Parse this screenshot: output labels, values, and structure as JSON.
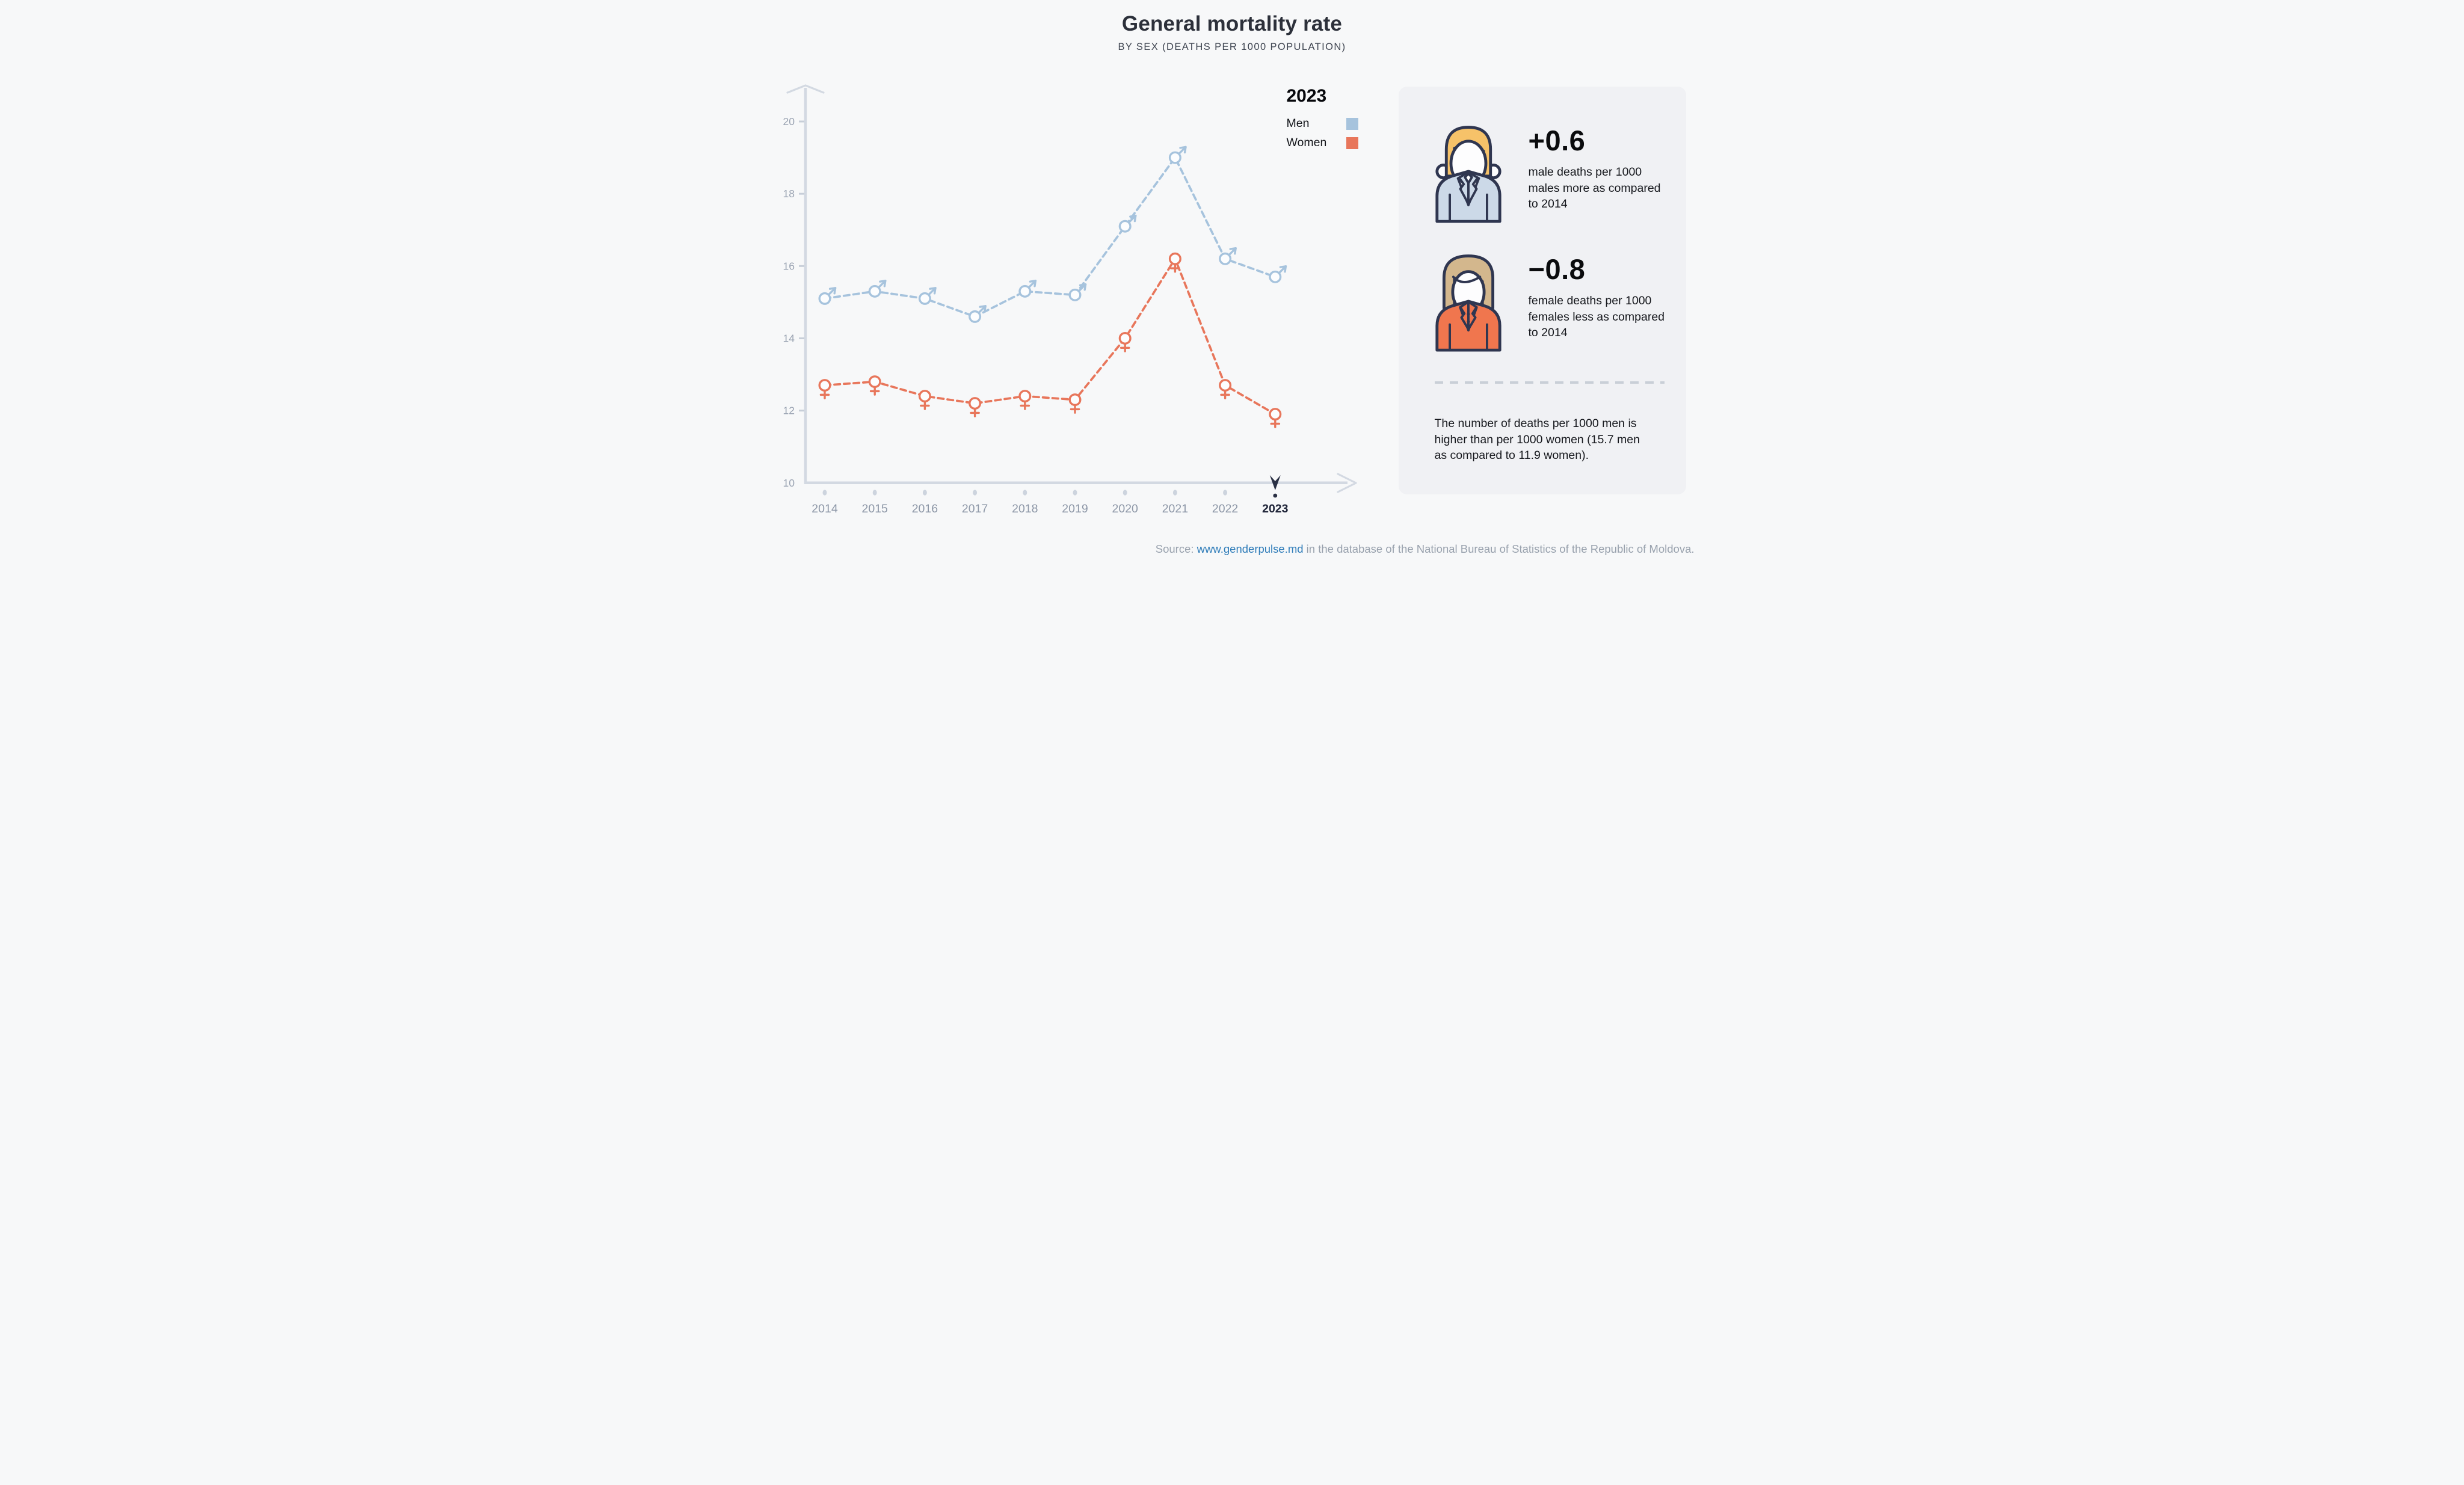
{
  "title": "General mortality rate",
  "subtitle": "BY SEX (DEATHS PER 1000 POPULATION)",
  "legend": {
    "year": "2023",
    "items": [
      {
        "label": "Men",
        "color": "#a6c3dd"
      },
      {
        "label": "Women",
        "color": "#e8765b"
      }
    ]
  },
  "chart_data": {
    "type": "line",
    "x": [
      2014,
      2015,
      2016,
      2017,
      2018,
      2019,
      2020,
      2021,
      2022,
      2023
    ],
    "series": [
      {
        "name": "Men",
        "color": "#a6c3dd",
        "marker": "male-sign",
        "values": [
          15.1,
          15.3,
          15.1,
          14.6,
          15.3,
          15.2,
          17.1,
          19.0,
          16.2,
          15.7
        ]
      },
      {
        "name": "Women",
        "color": "#e8765b",
        "marker": "female-sign",
        "values": [
          12.7,
          12.8,
          12.4,
          12.2,
          12.4,
          12.3,
          14.0,
          16.2,
          12.7,
          11.9
        ]
      }
    ],
    "yticks": [
      10,
      12,
      14,
      16,
      18,
      20
    ],
    "ylim": [
      10,
      21
    ],
    "xlabel": "",
    "ylabel": "",
    "grid": false,
    "line_style": "dashed",
    "legend_position": "top-right",
    "highlight_year": 2023
  },
  "panel": {
    "stats": [
      {
        "icon": "man-avatar",
        "value": "+0.6",
        "lines": [
          "male deaths per 1000",
          "males more as compared",
          "to 2014"
        ]
      },
      {
        "icon": "woman-avatar",
        "value": "−0.8",
        "lines": [
          "female deaths per 1000",
          "females less as compared",
          "to 2014"
        ]
      }
    ],
    "note_lines": [
      "The number of deaths per 1000 men is",
      "higher than per 1000 women (15.7 men",
      "as compared to 11.9 women)."
    ]
  },
  "source": {
    "prefix": "Source: ",
    "link": "www.genderpulse.md",
    "suffix": " in the database of the National Bureau of Statistics of the Republic of Moldova."
  },
  "colors": {
    "background": "#f7f8f9",
    "panel": "#f0f1f4",
    "axis": "#d3d9e2",
    "tick": "#c7ced8",
    "dot": "#cdd4de",
    "highlight": "#2a3044",
    "marker_fill": "#fcfdfe",
    "link": "#2e7cb9"
  }
}
